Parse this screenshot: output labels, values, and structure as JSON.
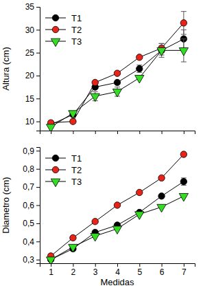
{
  "chart_data": [
    {
      "type": "line",
      "y_label": "Altura (cm)",
      "x_label": null,
      "x": [
        1,
        2,
        3,
        4,
        5,
        6,
        7
      ],
      "xlim": [
        0.5,
        7.5
      ],
      "xticks": [
        1,
        2,
        3,
        4,
        5,
        6,
        7
      ],
      "ylim": [
        8,
        35
      ],
      "yticks": [
        10,
        15,
        20,
        25,
        30,
        35
      ],
      "tick_labels": "y",
      "legend": "upper left",
      "grid": false,
      "series": [
        {
          "name": "T1",
          "color": "#000000",
          "marker": "circle",
          "line_style": "solid",
          "values": [
            9.3,
            11.5,
            17.5,
            18.5,
            21.5,
            25.5,
            28
          ],
          "errors": [
            null,
            null,
            null,
            null,
            0.8,
            1,
            2
          ]
        },
        {
          "name": "T2",
          "color": "#e8231a",
          "marker": "circle",
          "line_style": "solid",
          "values": [
            9.7,
            10,
            18.5,
            20.5,
            24,
            26,
            31.5
          ],
          "errors": [
            null,
            null,
            null,
            null,
            null,
            1,
            2.5
          ]
        },
        {
          "name": "T3",
          "color": "#33dd22",
          "marker": "triangle-down",
          "line_style": "solid",
          "values": [
            8.8,
            11.8,
            15.5,
            16.5,
            19.5,
            25.5,
            25.5
          ],
          "errors": [
            null,
            null,
            1,
            1,
            null,
            1.5,
            2.5
          ]
        }
      ]
    },
    {
      "type": "line",
      "y_label": "Diametro (cm)",
      "x_label": "Medidas",
      "x": [
        1,
        2,
        3,
        4,
        5,
        6,
        7
      ],
      "xlim": [
        0.5,
        7.5
      ],
      "xticks": [
        1,
        2,
        3,
        4,
        5,
        6,
        7
      ],
      "ylim": [
        0.28,
        0.92
      ],
      "yticks": [
        {
          "value": 0.3,
          "label": "0,3"
        },
        {
          "value": 0.4,
          "label": "0,4"
        },
        {
          "value": 0.5,
          "label": "0,5"
        },
        {
          "value": 0.6,
          "label": "0,6"
        },
        {
          "value": 0.7,
          "label": "0,7"
        },
        {
          "value": 0.8,
          "label": "0,8"
        },
        {
          "value": 0.9,
          "label": "0,9"
        }
      ],
      "legend": "upper left",
      "grid": false,
      "series": [
        {
          "name": "T1",
          "color": "#000000",
          "marker": "circle",
          "line_style": "solid",
          "values": [
            0.3,
            0.36,
            0.45,
            0.49,
            0.56,
            0.65,
            0.73
          ],
          "errors": [
            null,
            null,
            null,
            null,
            null,
            null,
            0.02
          ]
        },
        {
          "name": "T2",
          "color": "#e8231a",
          "marker": "circle",
          "line_style": "solid",
          "values": [
            0.32,
            0.42,
            0.51,
            0.6,
            0.67,
            0.75,
            0.88
          ],
          "errors": [
            null,
            null,
            null,
            null,
            null,
            null,
            null
          ]
        },
        {
          "name": "T3",
          "color": "#33dd22",
          "marker": "triangle-down",
          "line_style": "solid",
          "values": [
            0.3,
            0.37,
            0.43,
            0.47,
            0.55,
            0.59,
            0.65
          ],
          "errors": [
            null,
            null,
            null,
            null,
            null,
            null,
            null
          ]
        }
      ]
    }
  ]
}
